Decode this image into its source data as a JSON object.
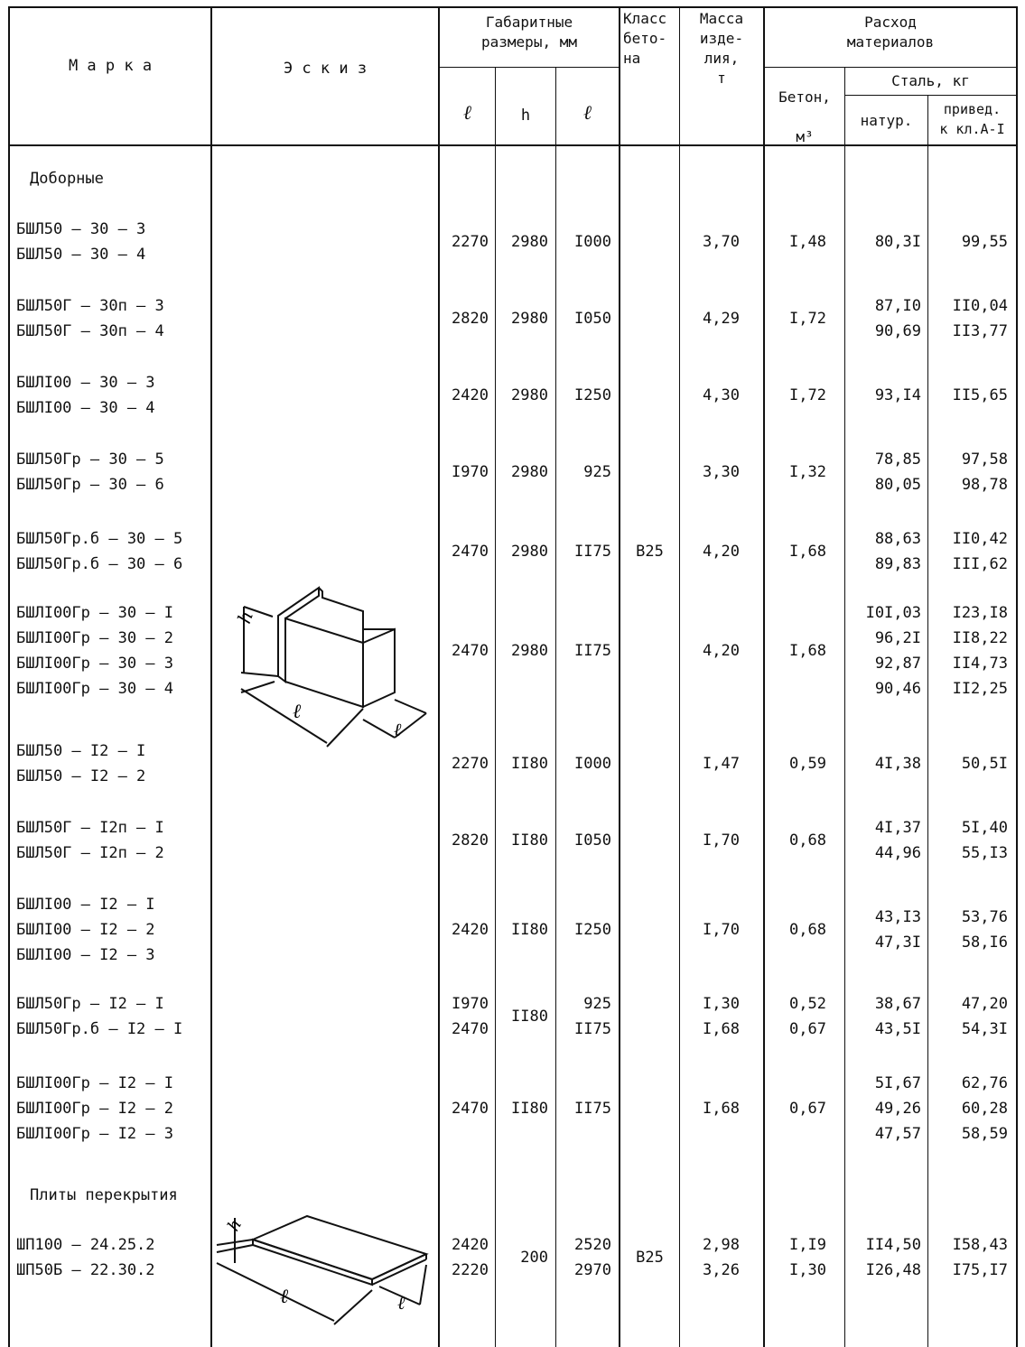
{
  "header": {
    "marka": "М а р к а",
    "eskiz": "Э с к и з",
    "gabarit": "Габаритные\nразмеры, мм",
    "l": "ℓ",
    "h": "h",
    "b": "ℓ",
    "klass": "Класс\nбето-\nна",
    "massa": "Масса\nизде-\nлия,\nт",
    "rashod": "Расход\nматериалов",
    "beton": "Бетон,\nм³",
    "stal": "Сталь, кг",
    "natur": "натур.",
    "priv": "привед.\nк кл.А-I"
  },
  "sections": {
    "doborn": "Доборные",
    "plity": "Плиты перекрытия"
  },
  "groups": [
    {
      "marks": [
        "БШЛ50 – 30 – 3",
        "БШЛ50 – 30 – 4"
      ],
      "l": [
        "2270"
      ],
      "h": [
        "2980"
      ],
      "b": [
        "I000"
      ],
      "klass": "",
      "mass": [
        "3,70"
      ],
      "beton": [
        "I,48"
      ],
      "natur": [
        "80,3I"
      ],
      "priv": [
        "99,55"
      ]
    },
    {
      "marks": [
        "БШЛ50Г – 30п – 3",
        "БШЛ50Г – 30п – 4"
      ],
      "l": [
        "2820"
      ],
      "h": [
        "2980"
      ],
      "b": [
        "I050"
      ],
      "klass": "",
      "mass": [
        "4,29"
      ],
      "beton": [
        "I,72"
      ],
      "natur": [
        "87,I0",
        "90,69"
      ],
      "priv": [
        "II0,04",
        "II3,77"
      ]
    },
    {
      "marks": [
        "БШЛI00 – 30 – 3",
        "БШЛI00 – 30 – 4"
      ],
      "l": [
        "2420"
      ],
      "h": [
        "2980"
      ],
      "b": [
        "I250"
      ],
      "klass": "",
      "mass": [
        "4,30"
      ],
      "beton": [
        "I,72"
      ],
      "natur": [
        "93,I4"
      ],
      "priv": [
        "II5,65"
      ]
    },
    {
      "marks": [
        "БШЛ50Гр – 30 – 5",
        "БШЛ50Гр – 30 – 6"
      ],
      "l": [
        "I970"
      ],
      "h": [
        "2980"
      ],
      "b": [
        "925"
      ],
      "klass": "",
      "mass": [
        "3,30"
      ],
      "beton": [
        "I,32"
      ],
      "natur": [
        "78,85",
        "80,05"
      ],
      "priv": [
        "97,58",
        "98,78"
      ]
    },
    {
      "marks": [
        "БШЛ50Гр.б – 30 – 5",
        "БШЛ50Гр.б – 30 – 6"
      ],
      "l": [
        "2470"
      ],
      "h": [
        "2980"
      ],
      "b": [
        "II75"
      ],
      "klass": "B25",
      "mass": [
        "4,20"
      ],
      "beton": [
        "I,68"
      ],
      "natur": [
        "88,63",
        "89,83"
      ],
      "priv": [
        "II0,42",
        "III,62"
      ]
    },
    {
      "marks": [
        "БШЛI00Гр – 30 – I",
        "БШЛI00Гр – 30 – 2",
        "БШЛI00Гр – 30 – 3",
        "БШЛI00Гр – 30 – 4"
      ],
      "l": [
        "2470"
      ],
      "h": [
        "2980"
      ],
      "b": [
        "II75"
      ],
      "klass": "",
      "mass": [
        "4,20"
      ],
      "beton": [
        "I,68"
      ],
      "natur": [
        "I0I,03",
        "96,2I",
        "92,87",
        "90,46"
      ],
      "priv": [
        "I23,I8",
        "II8,22",
        "II4,73",
        "II2,25"
      ]
    },
    {
      "marks": [
        "БШЛ50 – I2 – I",
        "БШЛ50 – I2 – 2"
      ],
      "l": [
        "2270"
      ],
      "h": [
        "II80"
      ],
      "b": [
        "I000"
      ],
      "klass": "",
      "mass": [
        "I,47"
      ],
      "beton": [
        "0,59"
      ],
      "natur": [
        "4I,38"
      ],
      "priv": [
        "50,5I"
      ]
    },
    {
      "marks": [
        "БШЛ50Г – I2п – I",
        "БШЛ50Г – I2п – 2"
      ],
      "l": [
        "2820"
      ],
      "h": [
        "II80"
      ],
      "b": [
        "I050"
      ],
      "klass": "",
      "mass": [
        "I,70"
      ],
      "beton": [
        "0,68"
      ],
      "natur": [
        "4I,37",
        "44,96"
      ],
      "priv": [
        "5I,40",
        "55,I3"
      ]
    },
    {
      "marks": [
        "БШЛI00 – I2 – I",
        "БШЛI00 – I2 – 2",
        "БШЛI00 – I2 – 3"
      ],
      "l": [
        "2420"
      ],
      "h": [
        "II80"
      ],
      "b": [
        "I250"
      ],
      "klass": "",
      "mass": [
        "I,70"
      ],
      "beton": [
        "0,68"
      ],
      "natur": [
        "43,I3",
        "47,3I"
      ],
      "priv": [
        "53,76",
        "58,I6"
      ]
    },
    {
      "marks": [
        "БШЛ50Гр – I2 – I",
        "БШЛ50Гр.б – I2 – I"
      ],
      "l": [
        "I970",
        "2470"
      ],
      "h": [
        "II80"
      ],
      "b": [
        "925",
        "II75"
      ],
      "klass": "",
      "mass": [
        "I,30",
        "I,68"
      ],
      "beton": [
        "0,52",
        "0,67"
      ],
      "natur": [
        "38,67",
        "43,5I"
      ],
      "priv": [
        "47,20",
        "54,3I"
      ]
    },
    {
      "marks": [
        "БШЛI00Гр – I2 – I",
        "БШЛI00Гр – I2 – 2",
        "БШЛI00Гр – I2 – 3"
      ],
      "l": [
        "2470"
      ],
      "h": [
        "II80"
      ],
      "b": [
        "II75"
      ],
      "klass": "",
      "mass": [
        "I,68"
      ],
      "beton": [
        "0,67"
      ],
      "natur": [
        "5I,67",
        "49,26",
        "47,57"
      ],
      "priv": [
        "62,76",
        "60,28",
        "58,59"
      ]
    },
    {
      "marks": [
        "ШП100 – 24.25.2",
        "ШП50Б – 22.30.2"
      ],
      "l": [
        "2420",
        "2220"
      ],
      "h": [
        "200"
      ],
      "b": [
        "2520",
        "2970"
      ],
      "klass": "B25",
      "mass": [
        "2,98",
        "3,26"
      ],
      "beton": [
        "I,I9",
        "I,30"
      ],
      "natur": [
        "II4,50",
        "I26,48"
      ],
      "priv": [
        "I58,43",
        "I75,I7"
      ]
    }
  ],
  "sketch_labels": {
    "h": "h",
    "l": "ℓ",
    "b": "ℓ"
  }
}
